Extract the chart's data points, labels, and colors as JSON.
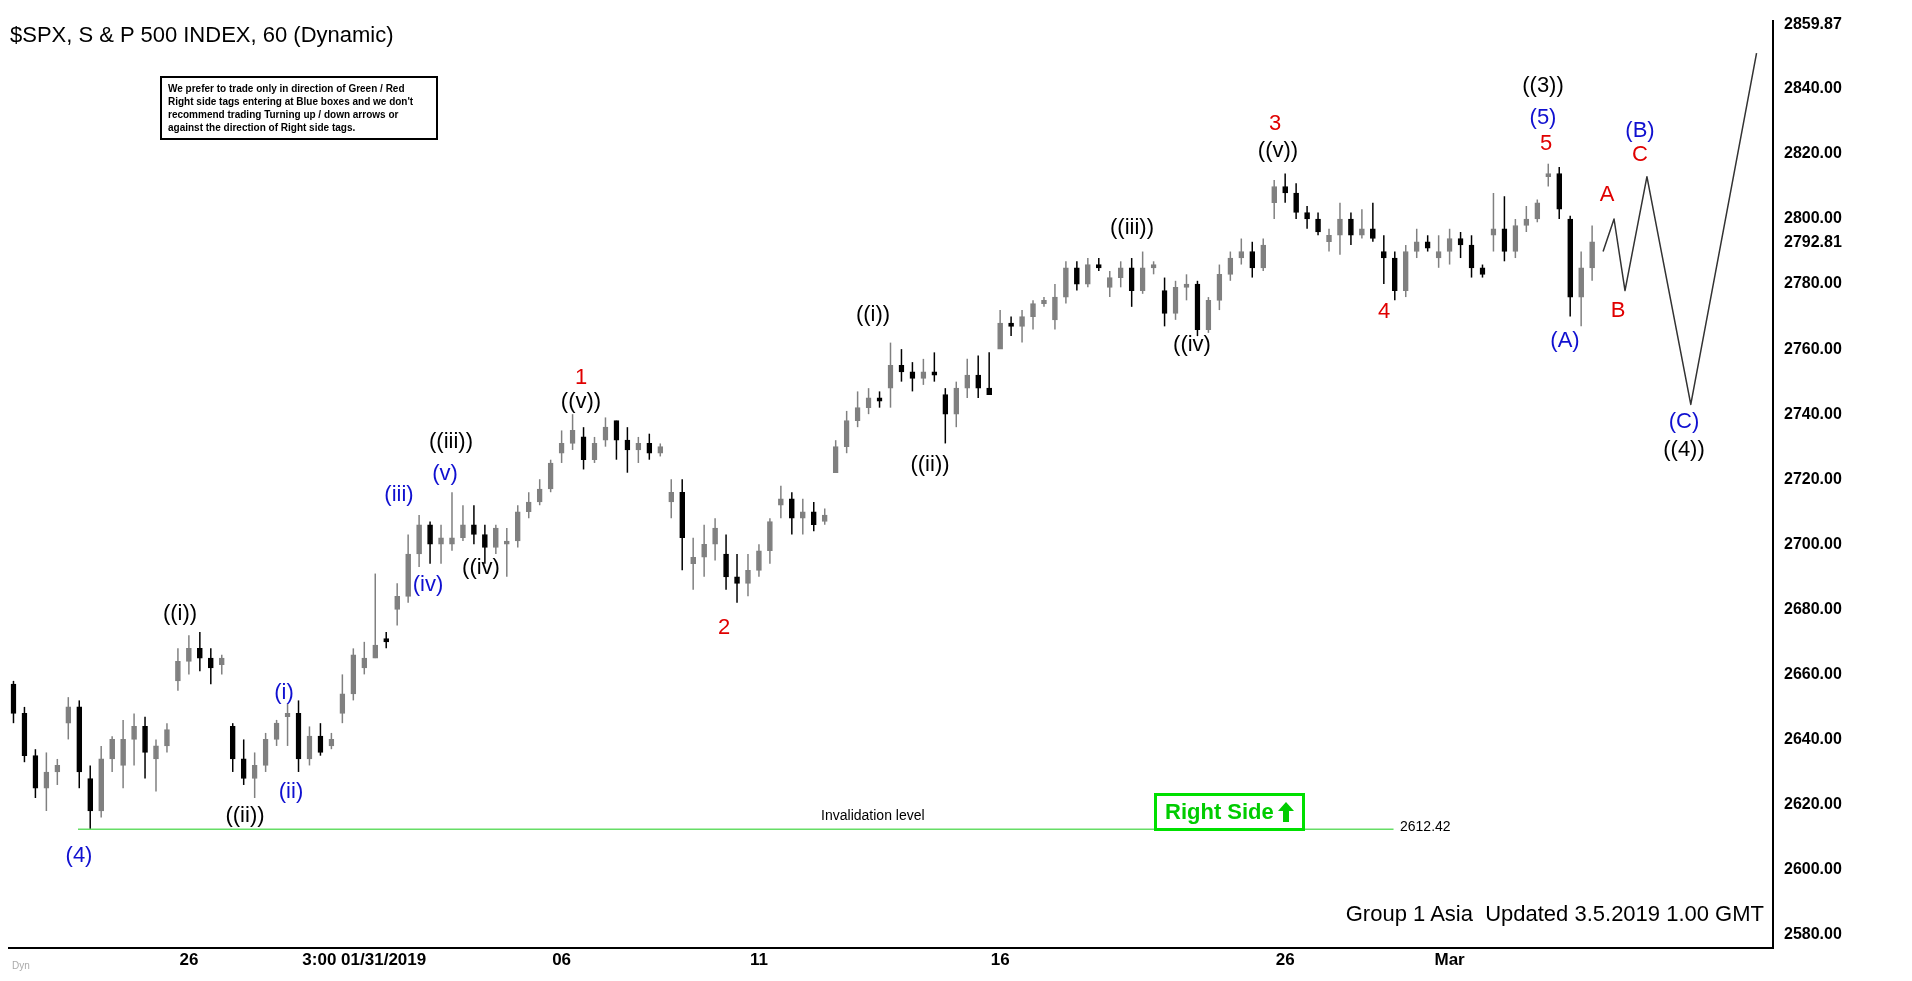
{
  "chart_data": {
    "type": "candlestick",
    "title": "$SPX, S & P 500 INDEX, 60 (Dynamic)",
    "colors": [
      "#000000",
      "#000000",
      "#000000",
      "#808080",
      "#808080",
      "#808080",
      "#000000",
      "#000000",
      "#808080",
      "#808080",
      "#808080",
      "#808080",
      "#000000",
      "#808080",
      "#808080",
      "#808080",
      "#808080",
      "#000000",
      "#000000",
      "#808080",
      "#000000",
      "#000000",
      "#808080",
      "#808080",
      "#808080",
      "#808080",
      "#000000",
      "#808080",
      "#000000",
      "#808080",
      "#808080",
      "#808080",
      "#808080",
      "#808080",
      "#000000",
      "#808080",
      "#808080",
      "#808080",
      "#000000",
      "#808080",
      "#808080",
      "#808080",
      "#000000",
      "#000000",
      "#808080",
      "#808080",
      "#808080",
      "#808080",
      "#808080",
      "#808080",
      "#808080",
      "#808080",
      "#000000",
      "#808080",
      "#808080",
      "#000000",
      "#000000",
      "#808080",
      "#000000",
      "#808080",
      "#808080",
      "#000000",
      "#808080",
      "#808080",
      "#808080",
      "#000000",
      "#000000",
      "#808080",
      "#808080",
      "#808080",
      "#808080",
      "#000000",
      "#808080",
      "#000000",
      "#808080",
      "#808080",
      "#808080",
      "#808080",
      "#808080",
      "#000000",
      "#808080",
      "#000000",
      "#000000",
      "#808080",
      "#000000",
      "#000000",
      "#808080",
      "#808080",
      "#000000",
      "#000000",
      "#808080",
      "#000000",
      "#808080",
      "#808080",
      "#808080",
      "#808080",
      "#808080",
      "#000000",
      "#808080",
      "#000000",
      "#808080",
      "#808080",
      "#000000",
      "#808080",
      "#808080",
      "#000000",
      "#808080",
      "#808080",
      "#000000",
      "#808080",
      "#808080",
      "#808080",
      "#808080",
      "#000000",
      "#808080",
      "#808080",
      "#000000",
      "#000000",
      "#000000",
      "#000000",
      "#808080",
      "#808080",
      "#000000",
      "#808080",
      "#000000",
      "#000000",
      "#000000",
      "#808080",
      "#808080",
      "#000000",
      "#808080",
      "#808080",
      "#000000",
      "#000000",
      "#000000",
      "#808080",
      "#000000",
      "#808080",
      "#808080",
      "#808080",
      "#808080",
      "#000000",
      "#000000",
      "#808080",
      "#808080",
      null,
      null,
      null,
      null,
      null,
      null,
      null,
      null,
      null,
      null,
      null,
      null,
      null,
      null,
      null,
      null
    ],
    "categories": [
      null,
      null,
      null,
      null,
      null,
      null,
      null,
      null,
      null,
      null,
      null,
      null,
      null,
      null,
      null,
      null,
      "26",
      null,
      null,
      null,
      null,
      null,
      null,
      null,
      null,
      null,
      null,
      null,
      null,
      null,
      null,
      null,
      "3:00 01/31/2019",
      null,
      null,
      null,
      null,
      null,
      null,
      null,
      null,
      null,
      null,
      null,
      null,
      null,
      null,
      null,
      null,
      null,
      "06",
      null,
      null,
      null,
      null,
      null,
      null,
      null,
      null,
      null,
      null,
      null,
      null,
      null,
      null,
      null,
      null,
      null,
      "11",
      null,
      null,
      null,
      null,
      null,
      null,
      null,
      null,
      null,
      null,
      null,
      null,
      null,
      null,
      null,
      null,
      null,
      null,
      null,
      null,
      null,
      "16",
      null,
      null,
      null,
      null,
      null,
      null,
      null,
      null,
      null,
      null,
      null,
      null,
      null,
      null,
      null,
      null,
      null,
      null,
      null,
      null,
      null,
      null,
      null,
      null,
      null,
      "26",
      null,
      null,
      null,
      null,
      null,
      null,
      null,
      null,
      null,
      null,
      null,
      null,
      null,
      null,
      "Mar",
      null,
      null,
      null,
      null,
      null,
      null,
      null,
      null,
      null,
      null,
      null,
      null,
      null,
      null,
      null,
      null,
      null,
      null,
      null,
      null,
      null,
      null,
      null,
      null,
      null,
      null,
      null,
      null,
      null
    ],
    "ohlc": [
      [
        2657,
        2658,
        2645,
        2648
      ],
      [
        2648,
        2650,
        2633,
        2635
      ],
      [
        2635,
        2637,
        2622,
        2625
      ],
      [
        2625,
        2636,
        2618,
        2630
      ],
      [
        2630,
        2634,
        2626,
        2632
      ],
      [
        2645,
        2653,
        2640,
        2650
      ],
      [
        2650,
        2652,
        2625,
        2630
      ],
      [
        2628,
        2632,
        2612.5,
        2618
      ],
      [
        2618,
        2638,
        2616,
        2634
      ],
      [
        2634,
        2641,
        2630,
        2640
      ],
      [
        2632,
        2646,
        2625,
        2640
      ],
      [
        2640,
        2648,
        2632,
        2644
      ],
      [
        2644,
        2647,
        2628,
        2636
      ],
      [
        2634,
        2640,
        2624,
        2638
      ],
      [
        2638,
        2645,
        2636,
        2643
      ],
      [
        2658,
        2668,
        2655,
        2664
      ],
      [
        2664,
        2672,
        2660,
        2668
      ],
      [
        2668,
        2673,
        2661,
        2665
      ],
      [
        2665,
        2668,
        2657,
        2662
      ],
      [
        2663,
        2666,
        2660,
        2665
      ],
      [
        2644,
        2645,
        2630,
        2634
      ],
      [
        2634,
        2640,
        2626,
        2628
      ],
      [
        2628,
        2636,
        2622,
        2632
      ],
      [
        2632,
        2642,
        2630,
        2640
      ],
      [
        2640,
        2646,
        2638,
        2645
      ],
      [
        2647,
        2651,
        2638,
        2648
      ],
      [
        2648,
        2652,
        2630,
        2634
      ],
      [
        2634,
        2644,
        2632,
        2641
      ],
      [
        2641,
        2645,
        2635,
        2636
      ],
      [
        2638,
        2642,
        2637,
        2640
      ],
      [
        2648,
        2660,
        2645,
        2654
      ],
      [
        2654,
        2668,
        2652,
        2666
      ],
      [
        2662,
        2670,
        2660,
        2665
      ],
      [
        2665,
        2691,
        2665,
        2669
      ],
      [
        2671,
        2673,
        2668,
        2670
      ],
      [
        2680,
        2688,
        2675,
        2684
      ],
      [
        2684,
        2703,
        2682,
        2697
      ],
      [
        2697,
        2709,
        2693,
        2706
      ],
      [
        2706,
        2707,
        2694,
        2700
      ],
      [
        2700,
        2706,
        2694,
        2702
      ],
      [
        2700,
        2716,
        2698,
        2702
      ],
      [
        2702,
        2712,
        2701,
        2706
      ],
      [
        2706,
        2712,
        2700,
        2703
      ],
      [
        2703,
        2706,
        2694,
        2699
      ],
      [
        2699,
        2706,
        2697,
        2705
      ],
      [
        2700,
        2705,
        2690,
        2701
      ],
      [
        2701,
        2712,
        2699,
        2710
      ],
      [
        2710,
        2716,
        2708,
        2713
      ],
      [
        2713,
        2720,
        2712,
        2717
      ],
      [
        2717,
        2726,
        2716,
        2725
      ],
      [
        2728,
        2735,
        2725,
        2731
      ],
      [
        2731,
        2740,
        2729,
        2735
      ],
      [
        2733,
        2736,
        2723,
        2726
      ],
      [
        2726,
        2733,
        2725,
        2731
      ],
      [
        2732,
        2739,
        2730,
        2736
      ],
      [
        2738,
        2738,
        2726,
        2732
      ],
      [
        2732,
        2736,
        2722,
        2729
      ],
      [
        2729,
        2733,
        2725,
        2731
      ],
      [
        2731,
        2734,
        2726,
        2728
      ],
      [
        2728,
        2731,
        2727,
        2730
      ],
      [
        2713,
        2720,
        2708,
        2716
      ],
      [
        2716,
        2720,
        2692,
        2702
      ],
      [
        2694,
        2702,
        2686,
        2696
      ],
      [
        2696,
        2706,
        2690,
        2700
      ],
      [
        2700,
        2708,
        2695,
        2705
      ],
      [
        2697,
        2703,
        2686,
        2690
      ],
      [
        2690,
        2697,
        2682,
        2688
      ],
      [
        2688,
        2697,
        2684,
        2692
      ],
      [
        2692,
        2700,
        2690,
        2698
      ],
      [
        2698,
        2708,
        2694,
        2707
      ],
      [
        2712,
        2718,
        2708,
        2714
      ],
      [
        2714,
        2716,
        2703,
        2708
      ],
      [
        2708,
        2714,
        2703,
        2710
      ],
      [
        2710,
        2713,
        2704,
        2706
      ],
      [
        2707,
        2711,
        2706,
        2709
      ],
      [
        2722,
        2732,
        2722,
        2730
      ],
      [
        2730,
        2741,
        2728,
        2738
      ],
      [
        2738,
        2747,
        2736,
        2742
      ],
      [
        2742,
        2748,
        2740,
        2745
      ],
      [
        2745,
        2747,
        2742,
        2744
      ],
      [
        2748,
        2762,
        2742,
        2755
      ],
      [
        2755,
        2760,
        2750,
        2753
      ],
      [
        2753,
        2756,
        2747,
        2751
      ],
      [
        2751,
        2757,
        2749,
        2753
      ],
      [
        2753,
        2759,
        2750,
        2752
      ],
      [
        2746,
        2748,
        2731,
        2740
      ],
      [
        2740,
        2750,
        2736,
        2748
      ],
      [
        2748,
        2757,
        2745,
        2752
      ],
      [
        2752,
        2758,
        2745,
        2748
      ],
      [
        2748,
        2759,
        2746,
        2746
      ],
      [
        2760,
        2772,
        2760,
        2768
      ],
      [
        2768,
        2770,
        2764,
        2767
      ],
      [
        2767,
        2772,
        2762,
        2770
      ],
      [
        2770,
        2775,
        2766,
        2774
      ],
      [
        2774,
        2776,
        2773,
        2775
      ],
      [
        2769,
        2780,
        2766,
        2776
      ],
      [
        2776,
        2787,
        2774,
        2785
      ],
      [
        2785,
        2787,
        2778,
        2780
      ],
      [
        2780,
        2788,
        2779,
        2786
      ],
      [
        2786,
        2788,
        2784,
        2785
      ],
      [
        2779,
        2784,
        2776,
        2782
      ],
      [
        2782,
        2787,
        2779,
        2785
      ],
      [
        2785,
        2788,
        2773,
        2778
      ],
      [
        2778,
        2790,
        2777,
        2785
      ],
      [
        2785,
        2787,
        2783,
        2786
      ],
      [
        2778,
        2782,
        2767,
        2771
      ],
      [
        2771,
        2781,
        2769,
        2779
      ],
      [
        2779,
        2783,
        2775,
        2780
      ],
      [
        2780,
        2781,
        2764,
        2766
      ],
      [
        2766,
        2776,
        2765,
        2775
      ],
      [
        2775,
        2786,
        2772,
        2783
      ],
      [
        2783,
        2790,
        2781,
        2788
      ],
      [
        2788,
        2794,
        2786,
        2790
      ],
      [
        2790,
        2793,
        2782,
        2785
      ],
      [
        2785,
        2794,
        2784,
        2792
      ],
      [
        2805,
        2812,
        2800,
        2810
      ],
      [
        2810,
        2814,
        2805,
        2808
      ],
      [
        2808,
        2811,
        2800,
        2802
      ],
      [
        2802,
        2804,
        2797,
        2800
      ],
      [
        2800,
        2802,
        2795,
        2796
      ],
      [
        2793,
        2797,
        2790,
        2795
      ],
      [
        2795,
        2805,
        2789,
        2800
      ],
      [
        2800,
        2802,
        2792,
        2795
      ],
      [
        2795,
        2803,
        2794,
        2797
      ],
      [
        2797,
        2805,
        2793,
        2794
      ],
      [
        2790,
        2795,
        2780,
        2788
      ],
      [
        2788,
        2790,
        2775,
        2778
      ],
      [
        2778,
        2792,
        2776,
        2790
      ],
      [
        2790,
        2797,
        2788,
        2793
      ],
      [
        2793,
        2795,
        2790,
        2791
      ],
      [
        2788,
        2795,
        2785,
        2790
      ],
      [
        2790,
        2797,
        2786,
        2794
      ],
      [
        2794,
        2796,
        2788,
        2792
      ],
      [
        2792,
        2795,
        2782,
        2785
      ],
      [
        2785,
        2786,
        2782,
        2783
      ],
      [
        2795,
        2808,
        2790,
        2797
      ],
      [
        2797,
        2807,
        2787,
        2790
      ],
      [
        2790,
        2800,
        2788,
        2798
      ],
      [
        2798,
        2804,
        2796,
        2800
      ],
      [
        2800,
        2806,
        2799,
        2805
      ],
      [
        2813,
        2817,
        2810,
        2814
      ],
      [
        2814,
        2816,
        2800,
        2803
      ],
      [
        2800,
        2801,
        2770,
        2776
      ],
      [
        2776,
        2790,
        2767,
        2785
      ],
      [
        2785,
        2798,
        2781,
        2793
      ],
      null,
      null,
      null,
      null,
      null,
      null,
      null,
      null,
      null,
      null,
      null,
      null,
      null,
      null,
      null,
      null
    ],
    "series": [
      {
        "type": "line",
        "color": "#333333",
        "values": [
          null,
          null,
          null,
          null,
          null,
          null,
          null,
          null,
          null,
          null,
          null,
          null,
          null,
          null,
          null,
          null,
          null,
          null,
          null,
          null,
          null,
          null,
          null,
          null,
          null,
          null,
          null,
          null,
          null,
          null,
          null,
          null,
          null,
          null,
          null,
          null,
          null,
          null,
          null,
          null,
          null,
          null,
          null,
          null,
          null,
          null,
          null,
          null,
          null,
          null,
          null,
          null,
          null,
          null,
          null,
          null,
          null,
          null,
          null,
          null,
          null,
          null,
          null,
          null,
          null,
          null,
          null,
          null,
          null,
          null,
          null,
          null,
          null,
          null,
          null,
          null,
          null,
          null,
          null,
          null,
          null,
          null,
          null,
          null,
          null,
          null,
          null,
          null,
          null,
          null,
          null,
          null,
          null,
          null,
          null,
          null,
          null,
          null,
          null,
          null,
          null,
          null,
          null,
          null,
          null,
          null,
          null,
          null,
          null,
          null,
          null,
          null,
          null,
          null,
          null,
          null,
          null,
          null,
          null,
          null,
          null,
          null,
          null,
          null,
          null,
          null,
          null,
          null,
          null,
          null,
          null,
          null,
          null,
          null,
          null,
          null,
          null,
          null,
          null,
          null,
          null,
          null,
          null,
          null,
          null,
          2790,
          2800,
          2778,
          null,
          2813,
          null,
          null,
          null,
          2743,
          null,
          null,
          null,
          null,
          null,
          2851,
          null
        ]
      }
    ],
    "ylim": [
      2576,
      2861
    ],
    "yticks": [
      {
        "value": 2580,
        "label": "2580.00"
      },
      {
        "value": 2600,
        "label": "2600.00"
      },
      {
        "value": 2620,
        "label": "2620.00"
      },
      {
        "value": 2640,
        "label": "2640.00"
      },
      {
        "value": 2660,
        "label": "2660.00"
      },
      {
        "value": 2680,
        "label": "2680.00"
      },
      {
        "value": 2700,
        "label": "2700.00"
      },
      {
        "value": 2720,
        "label": "2720.00"
      },
      {
        "value": 2740,
        "label": "2740.00"
      },
      {
        "value": 2760,
        "label": "2760.00"
      },
      {
        "value": 2780,
        "label": "2780.00"
      },
      {
        "value": 2792.81,
        "label": "2792.81"
      },
      {
        "value": 2800,
        "label": "2800.00"
      },
      {
        "value": 2820,
        "label": "2820.00"
      },
      {
        "value": 2840,
        "label": "2840.00"
      },
      {
        "value": 2859.87,
        "label": "2859.87"
      }
    ],
    "grid": false,
    "legend": false,
    "ref_lines": [
      {
        "axis": "y",
        "value": 2612.42,
        "label": "Invalidation level",
        "color": "#66dd66"
      }
    ],
    "annotations": [
      "We prefer to trade only in direction of Green / Red Right side tags entering at Blue boxes and we don't recommend trading Turning up / down arrows or against the direction of Right side tags.",
      "Right Side",
      "Group 1 Asia  Updated 3.5.2019 1.00 GMT",
      "Dyn",
      "2612.42",
      "(4)",
      "((i))",
      "((ii))",
      "(i)",
      "(ii)",
      "(iii)",
      "(iv)",
      "(v)",
      "((iii))",
      "((iv)",
      "1",
      "((v))",
      "2",
      "((i))",
      "((ii))",
      "((iii))",
      "((iv)",
      "3",
      "((v))",
      "4",
      "((3))",
      "(5)",
      "5",
      "(A)",
      "A",
      "B",
      "(B)",
      "C",
      "(C)",
      "((4))"
    ]
  }
}
